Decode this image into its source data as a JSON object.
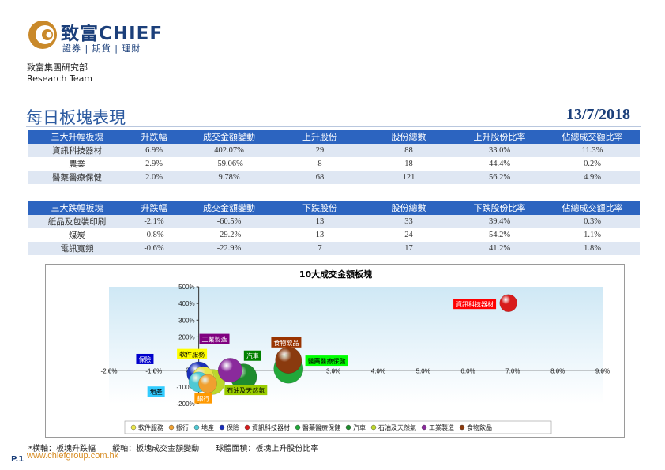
{
  "header": {
    "brand": "致富CHIEF",
    "sub": "證券 | 期貨 | 理財",
    "dept_cn": "致富集團研究部",
    "dept_en": "Research Team"
  },
  "report": {
    "title": "每日板塊表現",
    "date": "13/7/2018"
  },
  "tables": {
    "up": {
      "headers": [
        "三大升幅板塊",
        "升跌幅",
        "成交金額變動",
        "上升股份",
        "股份總數",
        "上升股份比率",
        "佔總成交額比率"
      ],
      "rows": [
        [
          "資訊科技器材",
          "6.9%",
          "402.07%",
          "29",
          "88",
          "33.0%",
          "11.3%"
        ],
        [
          "農業",
          "2.9%",
          "-59.06%",
          "8",
          "18",
          "44.4%",
          "0.2%"
        ],
        [
          "醫藥醫療保健",
          "2.0%",
          "9.78%",
          "68",
          "121",
          "56.2%",
          "4.9%"
        ]
      ]
    },
    "down": {
      "headers": [
        "三大跌幅板塊",
        "升跌幅",
        "成交金額變動",
        "下跌股份",
        "股份總數",
        "下跌股份比率",
        "佔總成交額比率"
      ],
      "rows": [
        [
          "紙品及包裝印刷",
          "-2.1%",
          "-60.5%",
          "13",
          "33",
          "39.4%",
          "0.3%"
        ],
        [
          "煤炭",
          "-0.8%",
          "-29.2%",
          "13",
          "24",
          "54.2%",
          "1.1%"
        ],
        [
          "電訊寬頻",
          "-0.6%",
          "-22.9%",
          "7",
          "17",
          "41.2%",
          "1.8%"
        ]
      ]
    }
  },
  "chart_data": {
    "type": "scatter",
    "title": "10大成交金額板塊",
    "xlim": [
      -2,
      9
    ],
    "ylim": [
      -200,
      500
    ],
    "x_ticks": [
      "-2.0%",
      "-1.0%",
      "0.0%",
      "1.0%",
      "2.0%",
      "3.0%",
      "4.0%",
      "5.0%",
      "6.0%",
      "7.0%",
      "8.0%",
      "9.0%"
    ],
    "y_ticks": [
      "-200%",
      "-100%",
      "0%",
      "100%",
      "200%",
      "300%",
      "400%",
      "500%"
    ],
    "grid": false,
    "legend_position": "bottom",
    "series": [
      {
        "name": "軟件服務",
        "x": 0.1,
        "y": -40,
        "size": 40,
        "color": "#e8e54a",
        "label_color": "#ffff00",
        "label_text_color": "#000000",
        "label": "軟件服務"
      },
      {
        "name": "銀行",
        "x": 0.2,
        "y": -80,
        "size": 35,
        "color": "#f0a030",
        "label_color": "#ff9900",
        "label_text_color": "#ffffff",
        "label": "銀行"
      },
      {
        "name": "地產",
        "x": 0.0,
        "y": -70,
        "size": 38,
        "color": "#4fc9d4",
        "label_color": "#33ccff",
        "label_text_color": "#000000",
        "label": "地產"
      },
      {
        "name": "保險",
        "x": 0.0,
        "y": -20,
        "size": 45,
        "color": "#1a2fb8",
        "label_color": "#0000cc",
        "label_text_color": "#ffffff",
        "label": "保險"
      },
      {
        "name": "資訊科技器材",
        "x": 6.9,
        "y": 402,
        "size": 33,
        "color": "#d81c1c",
        "label_color": "#ff0000",
        "label_text_color": "#ffffff",
        "label": "資訊科技器材"
      },
      {
        "name": "醫藥醫療保健",
        "x": 2.0,
        "y": 10,
        "size": 56,
        "color": "#22a83a",
        "label_color": "#00ff00",
        "label_text_color": "#000000",
        "label": "醫藥醫療保健"
      },
      {
        "name": "汽車",
        "x": 1.0,
        "y": -40,
        "size": 50,
        "color": "#1f8c2e",
        "label_color": "#008000",
        "label_text_color": "#ffffff",
        "label": "汽車"
      },
      {
        "name": "石油及天然氣",
        "x": 0.3,
        "y": -70,
        "size": 48,
        "color": "#bcd62c",
        "label_color": "#99cc00",
        "label_text_color": "#000000",
        "label": "石油及天然氣"
      },
      {
        "name": "工業製造",
        "x": 0.7,
        "y": 0,
        "size": 46,
        "color": "#8a2a9c",
        "label_color": "#800080",
        "label_text_color": "#ffffff",
        "label": "工業製造"
      },
      {
        "name": "食物飲品",
        "x": 2.0,
        "y": 60,
        "size": 50,
        "color": "#8a3a0e",
        "label_color": "#993300",
        "label_text_color": "#ffffff",
        "label": "食物飲品"
      }
    ],
    "legend": [
      "軟件服務",
      "銀行",
      "地產",
      "保險",
      "資訊科技器材",
      "醫藥醫療保健",
      "汽車",
      "石油及天然氣",
      "工業製造",
      "食物飲品"
    ]
  },
  "footnote": {
    "x_axis": "*橫軸：板塊升跌幅",
    "y_axis": "縱軸：板塊成交金額變動",
    "size": "球體面積：板塊上升股份比率"
  },
  "footer": {
    "page": "P.1",
    "url": "www.chiefgroup.com.hk"
  },
  "colors": {
    "accent": "#2c64c0",
    "brand": "#1b3f7a",
    "row_shade": "#dfe7f3"
  },
  "icons": {
    "logo": "chief-swirl-logo-icon"
  }
}
